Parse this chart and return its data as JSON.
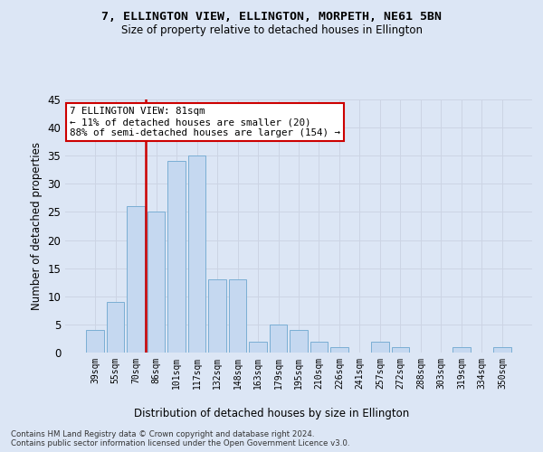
{
  "title1": "7, ELLINGTON VIEW, ELLINGTON, MORPETH, NE61 5BN",
  "title2": "Size of property relative to detached houses in Ellington",
  "xlabel": "Distribution of detached houses by size in Ellington",
  "ylabel": "Number of detached properties",
  "categories": [
    "39sqm",
    "55sqm",
    "70sqm",
    "86sqm",
    "101sqm",
    "117sqm",
    "132sqm",
    "148sqm",
    "163sqm",
    "179sqm",
    "195sqm",
    "210sqm",
    "226sqm",
    "241sqm",
    "257sqm",
    "272sqm",
    "288sqm",
    "303sqm",
    "319sqm",
    "334sqm",
    "350sqm"
  ],
  "values": [
    4,
    9,
    26,
    25,
    34,
    35,
    13,
    13,
    2,
    5,
    4,
    2,
    1,
    0,
    2,
    1,
    0,
    0,
    1,
    0,
    1
  ],
  "bar_color": "#c5d8f0",
  "bar_edge_color": "#7aaed4",
  "vline_bin_index": 3,
  "vline_color": "#cc0000",
  "annotation_text": "7 ELLINGTON VIEW: 81sqm\n← 11% of detached houses are smaller (20)\n88% of semi-detached houses are larger (154) →",
  "annotation_box_color": "#ffffff",
  "annotation_box_edge": "#cc0000",
  "ylim": [
    0,
    45
  ],
  "yticks": [
    0,
    5,
    10,
    15,
    20,
    25,
    30,
    35,
    40,
    45
  ],
  "grid_color": "#ccd4e4",
  "bg_color": "#dce6f5",
  "footer": "Contains HM Land Registry data © Crown copyright and database right 2024.\nContains public sector information licensed under the Open Government Licence v3.0."
}
